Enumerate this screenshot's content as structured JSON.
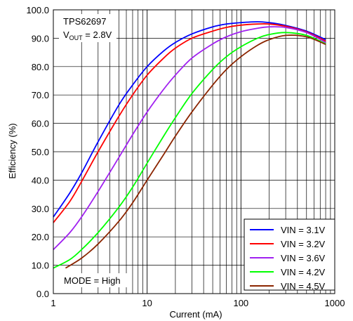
{
  "chart_data": {
    "type": "line",
    "xlabel": "Current (mA)",
    "ylabel": "Efficiency (%)",
    "xscale": "log",
    "xlim": [
      1,
      1000
    ],
    "ylim": [
      0,
      100
    ],
    "x_ticks": [
      "1",
      "10",
      "100",
      "1000"
    ],
    "y_ticks": [
      "0.0",
      "10.0",
      "20.0",
      "30.0",
      "40.0",
      "50.0",
      "60.0",
      "70.0",
      "80.0",
      "90.0",
      "100.0"
    ],
    "grid": true,
    "legend_position": "bottom-right",
    "annotations": {
      "device": "TPS62697",
      "vout_prefix": "V",
      "vout_sub": "OUT",
      "vout_value": " = 2.8V",
      "mode": "MODE = High"
    },
    "series": [
      {
        "name": "VIN = 3.1V",
        "color": "#0000ff",
        "points": [
          [
            1,
            27.0
          ],
          [
            1.5,
            35.5
          ],
          [
            2,
            42.5
          ],
          [
            3,
            53.5
          ],
          [
            5,
            66.5
          ],
          [
            7,
            73.5
          ],
          [
            10,
            80.0
          ],
          [
            15,
            85.5
          ],
          [
            20,
            88.5
          ],
          [
            30,
            91.5
          ],
          [
            50,
            94.0
          ],
          [
            70,
            95.0
          ],
          [
            100,
            95.5
          ],
          [
            150,
            95.8
          ],
          [
            200,
            95.5
          ],
          [
            300,
            94.5
          ],
          [
            500,
            92.5
          ],
          [
            800,
            89.5
          ]
        ]
      },
      {
        "name": "VIN = 3.2V",
        "color": "#ff0000",
        "points": [
          [
            1,
            25.0
          ],
          [
            1.5,
            32.5
          ],
          [
            2,
            39.5
          ],
          [
            3,
            50.0
          ],
          [
            5,
            62.5
          ],
          [
            7,
            70.0
          ],
          [
            10,
            77.0
          ],
          [
            15,
            83.0
          ],
          [
            20,
            86.5
          ],
          [
            30,
            90.0
          ],
          [
            50,
            92.5
          ],
          [
            70,
            93.8
          ],
          [
            100,
            94.6
          ],
          [
            150,
            95.0
          ],
          [
            200,
            95.0
          ],
          [
            300,
            94.2
          ],
          [
            500,
            92.2
          ],
          [
            800,
            89.0
          ]
        ]
      },
      {
        "name": "VIN = 3.6V",
        "color": "#a020f0",
        "points": [
          [
            1,
            15.5
          ],
          [
            1.5,
            21.5
          ],
          [
            2,
            27.0
          ],
          [
            3,
            36.0
          ],
          [
            5,
            48.0
          ],
          [
            7,
            56.0
          ],
          [
            10,
            64.0
          ],
          [
            15,
            72.0
          ],
          [
            20,
            77.0
          ],
          [
            30,
            83.0
          ],
          [
            50,
            88.0
          ],
          [
            70,
            90.5
          ],
          [
            100,
            92.3
          ],
          [
            150,
            93.5
          ],
          [
            200,
            94.0
          ],
          [
            300,
            93.8
          ],
          [
            500,
            92.0
          ],
          [
            800,
            88.5
          ]
        ]
      },
      {
        "name": "VIN = 4.2V",
        "color": "#00ff00",
        "points": [
          [
            1,
            9.0
          ],
          [
            1.5,
            12.0
          ],
          [
            2,
            15.5
          ],
          [
            3,
            21.5
          ],
          [
            5,
            30.5
          ],
          [
            7,
            37.5
          ],
          [
            10,
            46.0
          ],
          [
            15,
            55.5
          ],
          [
            20,
            62.0
          ],
          [
            30,
            70.5
          ],
          [
            50,
            79.0
          ],
          [
            70,
            83.5
          ],
          [
            100,
            87.0
          ],
          [
            150,
            90.0
          ],
          [
            200,
            91.3
          ],
          [
            300,
            92.0
          ],
          [
            500,
            91.0
          ],
          [
            800,
            88.0
          ]
        ]
      },
      {
        "name": "VIN = 4.5V",
        "color": "#8b2500",
        "points": [
          [
            1.35,
            9.0
          ],
          [
            2,
            12.5
          ],
          [
            3,
            17.5
          ],
          [
            5,
            25.5
          ],
          [
            7,
            32.0
          ],
          [
            10,
            40.0
          ],
          [
            15,
            49.0
          ],
          [
            20,
            55.5
          ],
          [
            30,
            64.0
          ],
          [
            50,
            73.5
          ],
          [
            70,
            79.0
          ],
          [
            100,
            83.5
          ],
          [
            150,
            87.5
          ],
          [
            200,
            89.5
          ],
          [
            300,
            91.0
          ],
          [
            500,
            90.5
          ],
          [
            800,
            87.8
          ]
        ]
      }
    ]
  }
}
